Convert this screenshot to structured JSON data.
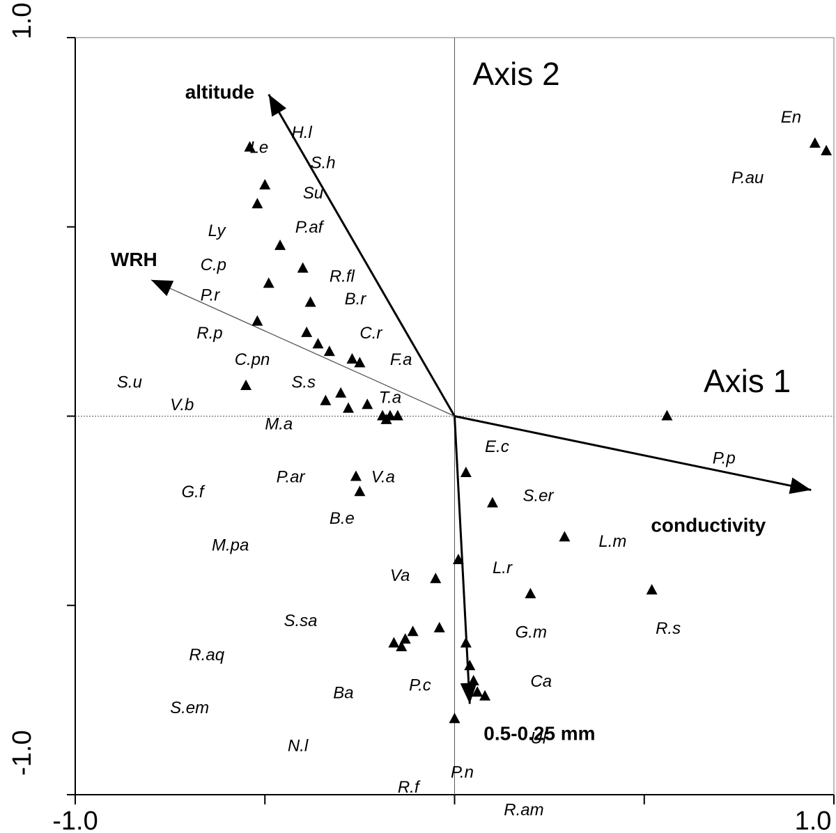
{
  "chart_data": {
    "type": "scatter",
    "xlim": [
      -1.0,
      1.0
    ],
    "ylim": [
      -1.0,
      1.0
    ],
    "x_tick_labels": {
      "left": "-1.0",
      "right": "1.0"
    },
    "y_tick_labels": {
      "top": "1.0",
      "bottom": "-1.0"
    },
    "axis_titles": {
      "axis1": "Axis 1",
      "axis2": "Axis 2"
    },
    "grid": false,
    "vectors": [
      {
        "name": "altitude",
        "x": -0.49,
        "y": 0.85
      },
      {
        "name": "WRH",
        "x": -0.8,
        "y": 0.36
      },
      {
        "name": "conductivity",
        "x": 0.94,
        "y": -0.195
      },
      {
        "name": "0.5-0.25 mm",
        "x": 0.04,
        "y": -0.76
      }
    ],
    "species": [
      {
        "label": "Le",
        "x": -0.54,
        "y": 0.71,
        "points": [
          [
            -0.54,
            0.71
          ]
        ]
      },
      {
        "label": "H.l",
        "x": -0.43,
        "y": 0.75,
        "points": [
          [
            -0.5,
            0.61
          ]
        ]
      },
      {
        "label": "S.h",
        "x": -0.38,
        "y": 0.67,
        "points": [
          [
            -0.52,
            0.56
          ]
        ]
      },
      {
        "label": "Su",
        "x": -0.4,
        "y": 0.59,
        "points": []
      },
      {
        "label": "Ly",
        "x": -0.65,
        "y": 0.49,
        "points": [
          [
            -0.46,
            0.45
          ]
        ]
      },
      {
        "label": "P.af",
        "x": -0.42,
        "y": 0.5,
        "points": [
          [
            -0.4,
            0.39
          ]
        ]
      },
      {
        "label": "C.p",
        "x": -0.67,
        "y": 0.4,
        "points": [
          [
            -0.49,
            0.35
          ]
        ]
      },
      {
        "label": "R.fl",
        "x": -0.33,
        "y": 0.37,
        "points": [
          [
            -0.38,
            0.3
          ]
        ]
      },
      {
        "label": "P.r",
        "x": -0.67,
        "y": 0.32,
        "points": [
          [
            -0.52,
            0.25
          ]
        ]
      },
      {
        "label": "B.r",
        "x": -0.29,
        "y": 0.31,
        "points": [
          [
            -0.39,
            0.22
          ]
        ]
      },
      {
        "label": "R.p",
        "x": -0.68,
        "y": 0.22,
        "points": [
          [
            -0.36,
            0.19
          ]
        ]
      },
      {
        "label": "C.r",
        "x": -0.25,
        "y": 0.22,
        "points": [
          [
            -0.33,
            0.17
          ]
        ]
      },
      {
        "label": "C.pn",
        "x": -0.58,
        "y": 0.15,
        "points": [
          [
            -0.27,
            0.15
          ]
        ]
      },
      {
        "label": "F.a",
        "x": -0.17,
        "y": 0.15,
        "points": [
          [
            -0.25,
            0.14
          ]
        ]
      },
      {
        "label": "S.s",
        "x": -0.43,
        "y": 0.09,
        "points": [
          [
            -0.3,
            0.06
          ],
          [
            -0.34,
            0.04
          ],
          [
            -0.28,
            0.02
          ]
        ]
      },
      {
        "label": "S.u",
        "x": -0.89,
        "y": 0.09,
        "points": [
          [
            -0.55,
            0.08
          ]
        ]
      },
      {
        "label": "T.a",
        "x": -0.2,
        "y": 0.05,
        "points": [
          [
            -0.23,
            0.03
          ]
        ]
      },
      {
        "label": "V.b",
        "x": -0.75,
        "y": 0.03,
        "points": [
          [
            -0.19,
            0.0
          ],
          [
            -0.17,
            0.0
          ],
          [
            -0.15,
            0.0
          ]
        ]
      },
      {
        "label": "M.a",
        "x": -0.5,
        "y": -0.02,
        "points": [
          [
            -0.18,
            -0.01
          ]
        ]
      },
      {
        "label": "E.c",
        "x": 0.08,
        "y": -0.08,
        "points": [
          [
            0.03,
            -0.15
          ]
        ]
      },
      {
        "label": "P.ar",
        "x": -0.47,
        "y": -0.16,
        "points": [
          [
            -0.26,
            -0.16
          ],
          [
            -0.25,
            -0.2
          ]
        ]
      },
      {
        "label": "V.a",
        "x": -0.22,
        "y": -0.16,
        "points": []
      },
      {
        "label": "G.f",
        "x": -0.72,
        "y": -0.2,
        "points": []
      },
      {
        "label": "S.er",
        "x": 0.18,
        "y": -0.21,
        "points": [
          [
            0.1,
            -0.23
          ]
        ]
      },
      {
        "label": "B.e",
        "x": -0.33,
        "y": -0.27,
        "points": []
      },
      {
        "label": "L.m",
        "x": 0.38,
        "y": -0.33,
        "points": [
          [
            0.29,
            -0.32
          ]
        ]
      },
      {
        "label": "M.pa",
        "x": -0.64,
        "y": -0.34,
        "points": []
      },
      {
        "label": "Va",
        "x": -0.17,
        "y": -0.42,
        "points": [
          [
            0.01,
            -0.38
          ],
          [
            -0.05,
            -0.43
          ]
        ]
      },
      {
        "label": "L.r",
        "x": 0.1,
        "y": -0.4,
        "points": [
          [
            0.2,
            -0.47
          ]
        ]
      },
      {
        "label": "R.s",
        "x": 0.53,
        "y": -0.56,
        "points": [
          [
            0.52,
            -0.46
          ]
        ]
      },
      {
        "label": "S.sa",
        "x": -0.45,
        "y": -0.54,
        "points": [
          [
            -0.04,
            -0.56
          ],
          [
            -0.11,
            -0.57
          ],
          [
            -0.13,
            -0.59
          ]
        ]
      },
      {
        "label": "G.m",
        "x": 0.16,
        "y": -0.57,
        "points": [
          [
            0.03,
            -0.6
          ]
        ]
      },
      {
        "label": "R.aq",
        "x": -0.7,
        "y": -0.63,
        "points": [
          [
            -0.16,
            -0.6
          ],
          [
            -0.14,
            -0.61
          ]
        ]
      },
      {
        "label": "Ca",
        "x": 0.2,
        "y": -0.7,
        "points": [
          [
            0.04,
            -0.66
          ]
        ]
      },
      {
        "label": "Ba",
        "x": -0.32,
        "y": -0.73,
        "points": [
          [
            0.05,
            -0.7
          ],
          [
            0.08,
            -0.74
          ]
        ]
      },
      {
        "label": "P.c",
        "x": -0.12,
        "y": -0.71,
        "points": [
          [
            0.06,
            -0.73
          ]
        ]
      },
      {
        "label": "S.em",
        "x": -0.75,
        "y": -0.77,
        "points": []
      },
      {
        "label": "N.l",
        "x": -0.44,
        "y": -0.87,
        "points": [
          [
            0.0,
            -0.8
          ]
        ]
      },
      {
        "label": "Ul",
        "x": 0.2,
        "y": -0.85,
        "points": []
      },
      {
        "label": "R.f",
        "x": -0.15,
        "y": -0.98,
        "points": []
      },
      {
        "label": "P.n",
        "x": -0.01,
        "y": -0.94,
        "points": []
      },
      {
        "label": "R.am",
        "x": 0.13,
        "y": -1.04,
        "points": []
      },
      {
        "label": "P.p",
        "x": 0.68,
        "y": -0.11,
        "points": [
          [
            0.56,
            0.0
          ]
        ]
      },
      {
        "label": "En",
        "x": 0.86,
        "y": 0.79,
        "points": [
          [
            0.95,
            0.72
          ],
          [
            0.98,
            0.7
          ]
        ]
      },
      {
        "label": "P.au",
        "x": 0.73,
        "y": 0.63,
        "points": []
      }
    ]
  }
}
